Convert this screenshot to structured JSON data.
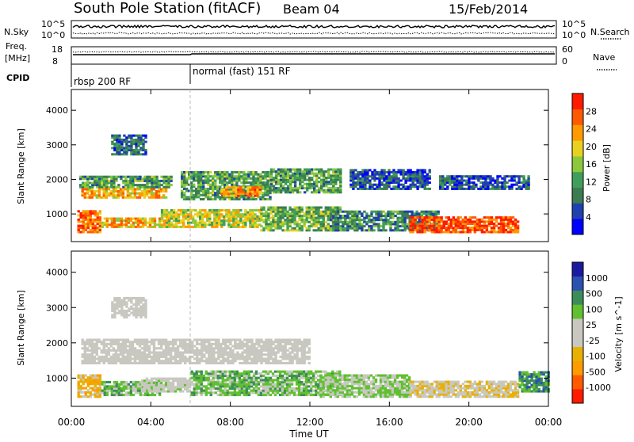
{
  "header": {
    "station": "South Pole Station",
    "mode": "(fitACF)",
    "beam": "Beam 04",
    "date": "15/Feb/2014"
  },
  "aux_panels": {
    "left_labels": [
      "N.Sky",
      "Freq.",
      "[MHz]",
      "CPID"
    ],
    "right_labels": [
      "N.Search",
      "Nave"
    ],
    "nsky_ticks": [
      "10^5",
      "10^0"
    ],
    "nsearch_ticks": [
      "10^5",
      "10^0"
    ],
    "freq_ticks": [
      "18",
      "8"
    ],
    "nave_ticks": [
      "60",
      "0"
    ]
  },
  "cpid": [
    {
      "label": "rbsp 200 RF",
      "start_hour": 0
    },
    {
      "label": "normal (fast) 151 RF",
      "start_hour": 6
    }
  ],
  "colors": {
    "power": [
      "#0000ff",
      "#2040b0",
      "#3c7c50",
      "#3f9f5a",
      "#8cc83c",
      "#e8d020",
      "#ff9a00",
      "#ff5a00",
      "#ff1a00"
    ],
    "velocity": [
      "#ff1a00",
      "#ff5a00",
      "#ff9a00",
      "#e8b000",
      "#c8c8c0",
      "#c8c8c0",
      "#60c030",
      "#3c8c5a",
      "#2a50b0",
      "#1a1aa0"
    ]
  },
  "chart_data": [
    {
      "type": "heatmap",
      "title": "Power",
      "ylabel": "Slant Range [km]",
      "xlabel": "",
      "ylim": [
        200,
        4600
      ],
      "xlim": [
        0,
        24
      ],
      "yticks": [
        "1000",
        "2000",
        "3000",
        "4000"
      ],
      "colorbar": {
        "label": "Power [dB]",
        "ticks": [
          "28",
          "24",
          "20",
          "16",
          "12",
          "8",
          "4"
        ],
        "range": [
          0,
          32
        ]
      },
      "bands": [
        {
          "t0": 0.3,
          "t1": 1.5,
          "r0": 450,
          "r1": 1100,
          "value": 26
        },
        {
          "t0": 1.5,
          "t1": 4.5,
          "r0": 600,
          "r1": 900,
          "value": 22
        },
        {
          "t0": 0.5,
          "t1": 4.8,
          "r0": 1450,
          "r1": 1750,
          "value": 22
        },
        {
          "t0": 0.4,
          "t1": 5.0,
          "r0": 1750,
          "r1": 2100,
          "value": 12
        },
        {
          "t0": 4.5,
          "t1": 9.5,
          "r0": 600,
          "r1": 1100,
          "value": 18
        },
        {
          "t0": 5.5,
          "t1": 10.0,
          "r0": 1400,
          "r1": 2200,
          "value": 12
        },
        {
          "t0": 7.5,
          "t1": 9.5,
          "r0": 1500,
          "r1": 1800,
          "value": 24
        },
        {
          "t0": 9.5,
          "t1": 13.5,
          "r0": 500,
          "r1": 1200,
          "value": 14
        },
        {
          "t0": 10.0,
          "t1": 13.5,
          "r0": 1600,
          "r1": 2300,
          "value": 12
        },
        {
          "t0": 13.0,
          "t1": 18.5,
          "r0": 500,
          "r1": 1100,
          "value": 10
        },
        {
          "t0": 14.0,
          "t1": 18.0,
          "r0": 1700,
          "r1": 2300,
          "value": 6
        },
        {
          "t0": 17.0,
          "t1": 22.5,
          "r0": 450,
          "r1": 900,
          "value": 28
        },
        {
          "t0": 18.5,
          "t1": 23.0,
          "r0": 1700,
          "r1": 2100,
          "value": 6
        },
        {
          "t0": 2.0,
          "t1": 3.8,
          "r0": 2700,
          "r1": 3300,
          "value": 8
        }
      ]
    },
    {
      "type": "heatmap",
      "title": "Velocity",
      "ylabel": "Slant Range [km]",
      "xlabel": "Time UT",
      "ylim": [
        200,
        4600
      ],
      "xlim": [
        0,
        24
      ],
      "yticks": [
        "1000",
        "2000",
        "3000",
        "4000"
      ],
      "xticks": [
        "00:00",
        "04:00",
        "08:00",
        "12:00",
        "16:00",
        "20:00",
        "00:00"
      ],
      "colorbar": {
        "label": "Velocity [m s^-1]",
        "ticks": [
          "1000",
          "500",
          "100",
          "25",
          "-25",
          "-100",
          "-500",
          "-1000"
        ],
        "range": [
          -1000,
          1000
        ]
      },
      "bands": [
        {
          "t0": 0.3,
          "t1": 1.5,
          "r0": 450,
          "r1": 1100,
          "value": -300
        },
        {
          "t0": 1.5,
          "t1": 4.5,
          "r0": 500,
          "r1": 900,
          "value": 300
        },
        {
          "t0": 3.5,
          "t1": 6.0,
          "r0": 600,
          "r1": 1000,
          "value": 60
        },
        {
          "t0": 0.5,
          "t1": 12.0,
          "r0": 1400,
          "r1": 2100,
          "value": 0
        },
        {
          "t0": 6.0,
          "t1": 13.5,
          "r0": 500,
          "r1": 1200,
          "value": 300
        },
        {
          "t0": 12.5,
          "t1": 17.0,
          "r0": 450,
          "r1": 1100,
          "value": 200
        },
        {
          "t0": 17.0,
          "t1": 22.5,
          "r0": 450,
          "r1": 900,
          "value": -150
        },
        {
          "t0": 2.0,
          "t1": 3.8,
          "r0": 2700,
          "r1": 3300,
          "value": 0
        },
        {
          "t0": 22.5,
          "t1": 24.0,
          "r0": 600,
          "r1": 1200,
          "value": 500
        }
      ]
    }
  ]
}
